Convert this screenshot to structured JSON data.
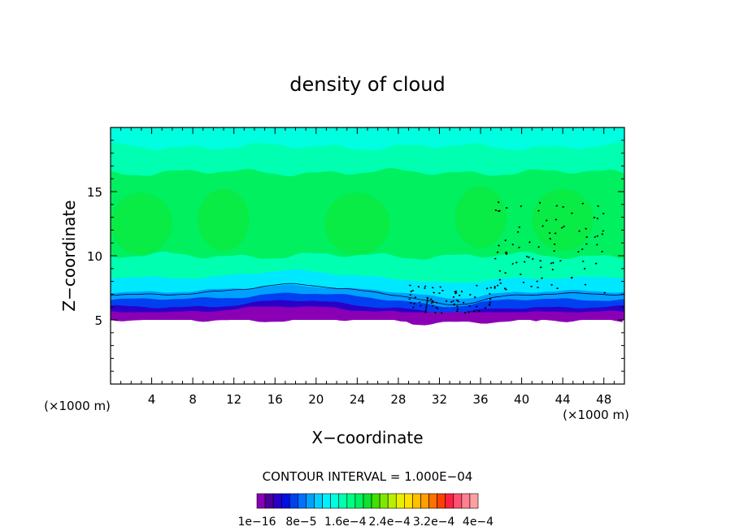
{
  "chart_data": {
    "type": "heatmap",
    "title": "density of cloud",
    "xlabel": "X−coordinate",
    "ylabel": "Z−coordinate",
    "x_unit": "(×1000 m)",
    "y_unit": "(×1000 m)",
    "xlim": [
      0,
      50
    ],
    "ylim": [
      0,
      20
    ],
    "x_ticks": [
      4,
      8,
      12,
      16,
      20,
      24,
      28,
      32,
      36,
      40,
      44,
      48
    ],
    "y_ticks": [
      5,
      10,
      15
    ],
    "contour_interval_text": "CONTOUR INTERVAL = 1.000E−04",
    "colorbar": {
      "colors": [
        "#8b00b5",
        "#4b0099",
        "#2a00c8",
        "#0010e0",
        "#0040f0",
        "#0070ff",
        "#00a0ff",
        "#00d0ff",
        "#00f0ff",
        "#00ffe0",
        "#00ffb0",
        "#00ff80",
        "#00f060",
        "#10e030",
        "#40e000",
        "#80e800",
        "#b8f000",
        "#e8f000",
        "#ffe000",
        "#ffc000",
        "#ffa000",
        "#ff7000",
        "#ff4000",
        "#ff2040",
        "#ff5070",
        "#ff8090",
        "#ffa0a0"
      ],
      "labels": [
        "1e−16",
        "8e−5",
        "1.6e−4",
        "2.4e−4",
        "3.2e−4",
        "4e−4"
      ]
    },
    "layers": [
      {
        "name": "band_top",
        "color": "#00ffe0",
        "z_range": [
          18.5,
          20
        ]
      },
      {
        "name": "band_upper",
        "color": "#00ffb0",
        "z_range": [
          16.5,
          18.5
        ]
      },
      {
        "name": "core",
        "color": "#00f060",
        "z_range": [
          10,
          16.5
        ]
      },
      {
        "name": "lower_green",
        "color": "#00ffb0",
        "z_range": [
          8.3,
          10
        ]
      },
      {
        "name": "cyan",
        "color": "#00e8ff",
        "z_range": [
          7.2,
          8.3
        ]
      },
      {
        "name": "light_blue",
        "color": "#00a0ff",
        "z_range": [
          6.6,
          7.2
        ]
      },
      {
        "name": "blue",
        "color": "#0040f0",
        "z_range": [
          6.0,
          6.6
        ]
      },
      {
        "name": "dark_blue",
        "color": "#2a00c8",
        "z_range": [
          5.6,
          6.0
        ]
      },
      {
        "name": "purple",
        "color": "#8b00b5",
        "z_range": [
          5.0,
          5.6
        ]
      }
    ],
    "cloud_base_z": 5.0,
    "cloud_top_z": 20
  }
}
